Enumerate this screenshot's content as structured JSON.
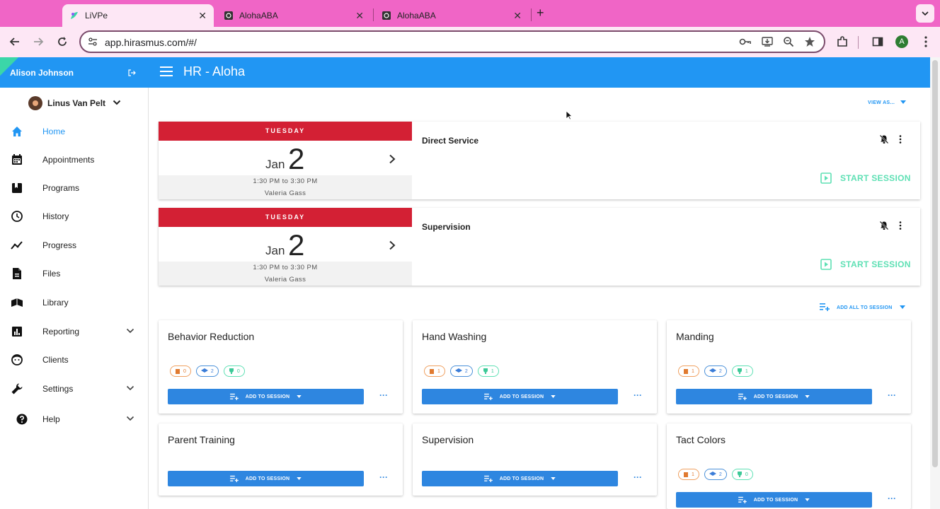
{
  "browser": {
    "tabs": [
      {
        "title": "LiVPe",
        "active": true
      },
      {
        "title": "AlohaABA",
        "active": false
      },
      {
        "title": "AlohaABA",
        "active": false
      }
    ],
    "url": "app.hirasmus.com/#/",
    "profile_initial": "A"
  },
  "sidebar": {
    "user_name": "Alison Johnson",
    "client_name": "Linus Van Pelt",
    "items": [
      {
        "label": "Home",
        "icon": "home-icon",
        "active": true
      },
      {
        "label": "Appointments",
        "icon": "calendar-icon"
      },
      {
        "label": "Programs",
        "icon": "programs-icon"
      },
      {
        "label": "History",
        "icon": "clock-icon"
      },
      {
        "label": "Progress",
        "icon": "trending-icon"
      },
      {
        "label": "Files",
        "icon": "file-icon"
      },
      {
        "label": "Library",
        "icon": "library-icon"
      },
      {
        "label": "Reporting",
        "icon": "chart-icon",
        "expandable": true
      },
      {
        "label": "Clients",
        "icon": "face-icon"
      },
      {
        "label": "Settings",
        "icon": "wrench-icon",
        "expandable": true
      },
      {
        "label": "Help",
        "icon": "help-icon",
        "expandable": true
      }
    ]
  },
  "appbar": {
    "title": "HR - Aloha"
  },
  "view_as_label": "VIEW AS...",
  "appointments": [
    {
      "weekday": "TUESDAY",
      "month": "Jan",
      "day": "2",
      "time": "1:30 PM to 3:30 PM",
      "staff": "Valeria Gass",
      "title": "Direct Service",
      "action": "START SESSION"
    },
    {
      "weekday": "TUESDAY",
      "month": "Jan",
      "day": "2",
      "time": "1:30 PM to 3:30 PM",
      "staff": "Valeria Gass",
      "title": "Supervision",
      "action": "START SESSION"
    }
  ],
  "add_all_label": "ADD ALL TO SESSION",
  "programs": [
    {
      "title": "Behavior Reduction",
      "badges": [
        "0",
        "2",
        "0"
      ],
      "button": "ADD TO SESSION"
    },
    {
      "title": "Hand Washing",
      "badges": [
        "1",
        "2",
        "1"
      ],
      "button": "ADD TO SESSION"
    },
    {
      "title": "Manding",
      "badges": [
        "1",
        "2",
        "1"
      ],
      "button": "ADD TO SESSION"
    },
    {
      "title": "Parent Training",
      "badges": [],
      "button": "ADD TO SESSION"
    },
    {
      "title": "Supervision",
      "badges": [],
      "button": "ADD TO SESSION"
    },
    {
      "title": "Tact Colors",
      "badges": [
        "1",
        "2",
        "0"
      ],
      "button": "ADD TO SESSION"
    }
  ],
  "colors": {
    "primary": "#2196f3",
    "accent_red": "#d32034",
    "start_green": "#5ee0b4",
    "tab_bar": "#f065c6"
  }
}
